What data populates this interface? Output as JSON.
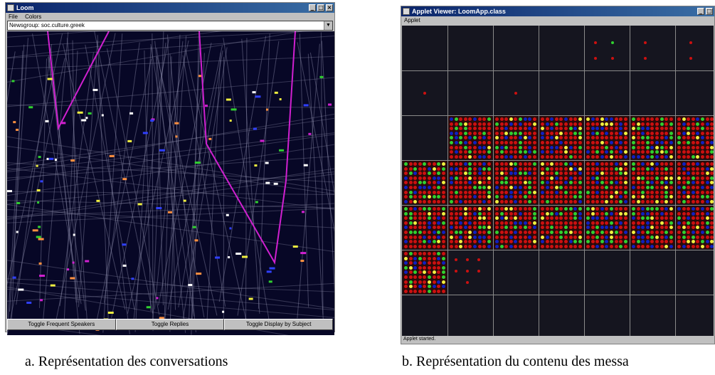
{
  "window_a": {
    "title": "Loom",
    "menu": [
      "File",
      "Colors"
    ],
    "newsgroup_value": "Newsgroup: soc.culture.greek",
    "buttons": [
      "Toggle Frequent Speakers",
      "Toggle Replies",
      "Toggle Display by Subject"
    ]
  },
  "window_b": {
    "title": "Applet Viewer: LoomApp.class",
    "menu": [
      "Applet"
    ],
    "status": "Applet started."
  },
  "captions": {
    "a": "a. Représentation des conversations",
    "b": "b. Représentation du contenu des messa"
  },
  "colors": {
    "canvas_a": "#070726",
    "highlight": "#d020d0",
    "tile_red": "#cc1010",
    "dot_green": "#30d030",
    "dot_blue": "#1020c0",
    "dot_yellow": "#f0f040",
    "grid_b_bg": "#15151f"
  },
  "icons": [
    "window-icon",
    "minimize-icon",
    "maximize-icon",
    "close-icon",
    "dropdown-arrow-icon"
  ]
}
